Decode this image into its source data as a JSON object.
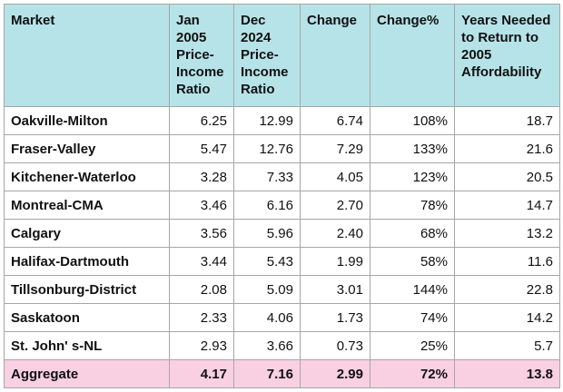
{
  "table": {
    "header": [
      "Market",
      "Jan 2005 Price-Income Ratio",
      "Dec 2024 Price-Income Ratio",
      "Change",
      "Change%",
      "Years Needed to Return to 2005 Affordability"
    ],
    "rows": [
      [
        "Oakville-Milton",
        "6.25",
        "12.99",
        "6.74",
        "108%",
        "18.7"
      ],
      [
        "Fraser-Valley",
        "5.47",
        "12.76",
        "7.29",
        "133%",
        "21.6"
      ],
      [
        "Kitchener-Waterloo",
        "3.28",
        "7.33",
        "4.05",
        "123%",
        "20.5"
      ],
      [
        "Montreal-CMA",
        "3.46",
        "6.16",
        "2.70",
        "78%",
        "14.7"
      ],
      [
        "Calgary",
        "3.56",
        "5.96",
        "2.40",
        "68%",
        "13.2"
      ],
      [
        "Halifax-Dartmouth",
        "3.44",
        "5.43",
        "1.99",
        "58%",
        "11.6"
      ],
      [
        "Tillsonburg-District",
        "2.08",
        "5.09",
        "3.01",
        "144%",
        "22.8"
      ],
      [
        "Saskatoon",
        "2.33",
        "4.06",
        "1.73",
        "74%",
        "14.2"
      ],
      [
        "St. John' s-NL",
        "2.93",
        "3.66",
        "0.73",
        "25%",
        "5.7"
      ]
    ],
    "aggregate": [
      "Aggregate",
      "4.17",
      "7.16",
      "2.99",
      "72%",
      "13.8"
    ]
  }
}
